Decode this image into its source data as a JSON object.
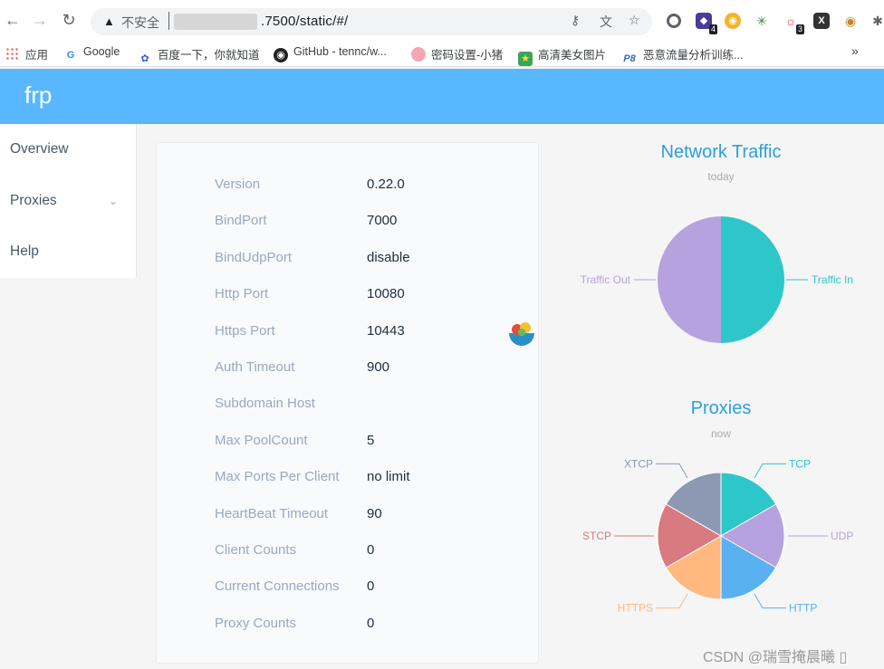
{
  "browser": {
    "insecure_label": "不安全",
    "url": ".7500/static/#/",
    "bookmarks_overflow": "»",
    "extension_badges": [
      "4",
      "3"
    ],
    "bookmarks": [
      {
        "label": "应用",
        "icon": "apps-grid-icon"
      },
      {
        "label": "Google",
        "icon": "google-icon"
      },
      {
        "label": "百度一下，你就知道",
        "icon": "baidu-paw-icon"
      },
      {
        "label": "GitHub - tennc/w...",
        "icon": "github-icon"
      },
      {
        "label": "密码设置-小猪",
        "icon": "pig-icon"
      },
      {
        "label": "高清美女图片",
        "icon": "star-image-icon"
      },
      {
        "label": "恶意流量分析训练...",
        "icon": "p8-icon"
      }
    ]
  },
  "app": {
    "logo": "frp",
    "header_color": "#58b7ff",
    "menu": {
      "overview": "Overview",
      "proxies": "Proxies",
      "help": "Help"
    },
    "info": [
      {
        "label": "Version",
        "value": "0.22.0"
      },
      {
        "label": "BindPort",
        "value": "7000"
      },
      {
        "label": "BindUdpPort",
        "value": "disable"
      },
      {
        "label": "Http Port",
        "value": "10080"
      },
      {
        "label": "Https Port",
        "value": "10443"
      },
      {
        "label": "Auth Timeout",
        "value": "900"
      },
      {
        "label": "Subdomain Host",
        "value": ""
      },
      {
        "label": "Max PoolCount",
        "value": "5"
      },
      {
        "label": "Max Ports Per Client",
        "value": "no limit"
      },
      {
        "label": "HeartBeat Timeout",
        "value": "90"
      },
      {
        "label": "Client Counts",
        "value": "0"
      },
      {
        "label": "Current Connections",
        "value": "0"
      },
      {
        "label": "Proxy Counts",
        "value": "0"
      }
    ]
  },
  "chart_data": [
    {
      "type": "pie",
      "title": "Network Traffic",
      "subtitle": "today",
      "categories": [
        "Traffic In",
        "Traffic Out"
      ],
      "values": [
        1,
        1
      ],
      "colors": [
        "#2ec7c9",
        "#b6a2de"
      ]
    },
    {
      "type": "pie",
      "title": "Proxies",
      "subtitle": "now",
      "categories": [
        "TCP",
        "UDP",
        "HTTP",
        "HTTPS",
        "STCP",
        "XTCP"
      ],
      "values": [
        1,
        1,
        1,
        1,
        1,
        1
      ],
      "colors": [
        "#2ec7c9",
        "#b6a2de",
        "#5ab1ef",
        "#ffb980",
        "#d87a80",
        "#8d98b3"
      ]
    }
  ],
  "watermark": "CSDN @瑞雪掩晨曦 ▯"
}
